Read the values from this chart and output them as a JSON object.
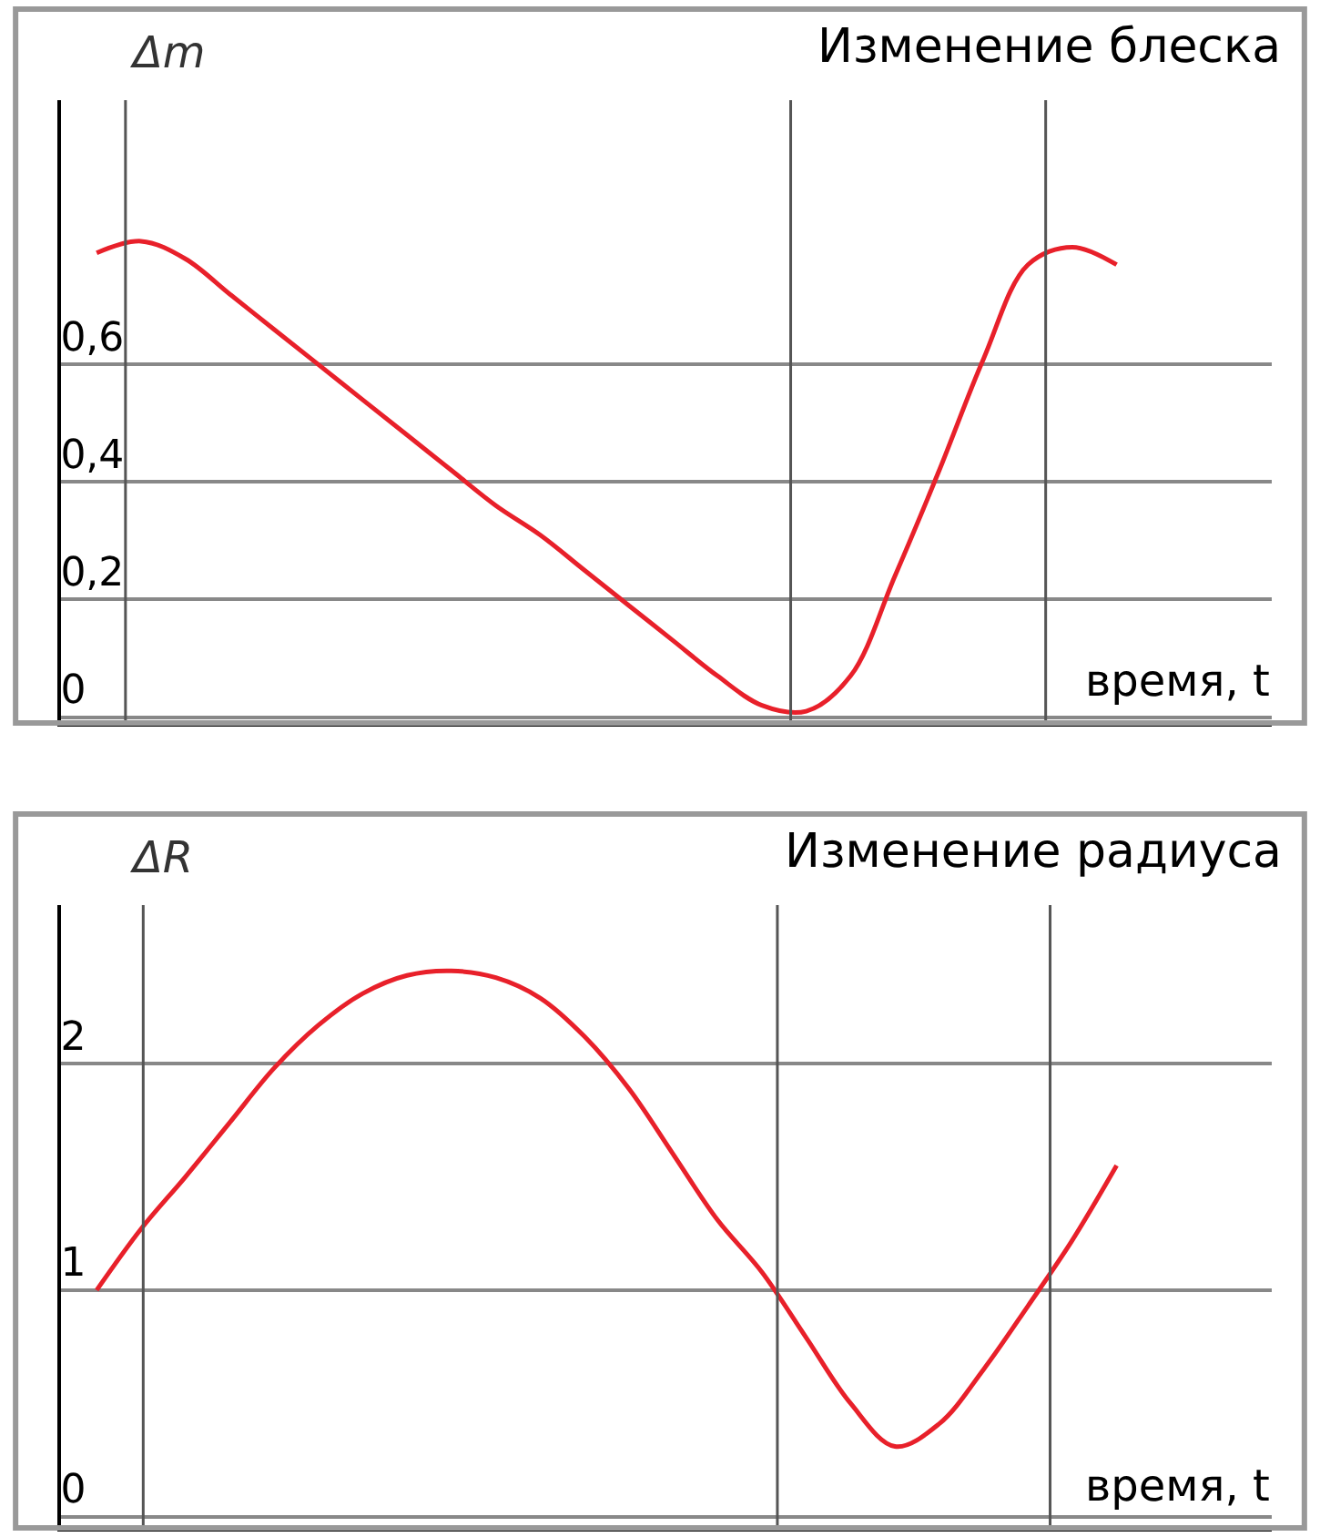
{
  "chart_data": [
    {
      "type": "line",
      "title": "Изменение блеска",
      "ylabel": "Δm",
      "xlabel": "время, t",
      "categories": [
        null,
        null,
        null,
        null,
        null,
        null,
        null,
        null,
        null,
        null,
        null,
        null,
        null,
        null,
        null,
        null,
        null,
        null,
        null,
        null,
        null,
        null,
        null,
        null
      ],
      "series": [
        {
          "color": "#e8202a",
          "values": [
            0.79,
            0.81,
            0.78,
            0.72,
            0.66,
            0.6,
            0.54,
            0.48,
            0.42,
            0.36,
            0.31,
            0.25,
            0.19,
            0.13,
            0.07,
            0.02,
            0.01,
            0.07,
            0.24,
            0.42,
            0.61,
            0.77,
            0.8,
            0.77
          ]
        }
      ],
      "ylim": [
        -0.01,
        1.05
      ],
      "yticks": [
        {
          "value": 0,
          "label": "0"
        },
        {
          "value": 0.2,
          "label": "0,2"
        },
        {
          "value": 0.4,
          "label": "0,4"
        },
        {
          "value": 0.6,
          "label": "0,6"
        }
      ],
      "grid": "y",
      "tick_labels": "y"
    },
    {
      "type": "line",
      "title": "Изменение радиуса",
      "ylabel": "ΔR",
      "xlabel": "время, t",
      "categories": [
        null,
        null,
        null,
        null,
        null,
        null,
        null,
        null,
        null,
        null,
        null,
        null,
        null,
        null,
        null,
        null,
        null,
        null,
        null,
        null,
        null,
        null,
        null,
        null
      ],
      "series": [
        {
          "color": "#e8202a",
          "values": [
            1.0,
            1.27,
            1.5,
            1.74,
            1.98,
            2.17,
            2.31,
            2.39,
            2.41,
            2.38,
            2.29,
            2.12,
            1.89,
            1.6,
            1.31,
            1.08,
            0.79,
            0.5,
            0.31,
            0.41,
            0.65,
            0.93,
            1.22,
            1.55
          ]
        }
      ],
      "ylim": [
        -0.05,
        2.7
      ],
      "yticks": [
        {
          "value": 0,
          "label": "0"
        },
        {
          "value": 1,
          "label": "1"
        },
        {
          "value": 2,
          "label": "2"
        }
      ],
      "grid": "y",
      "tick_labels": "y"
    }
  ]
}
